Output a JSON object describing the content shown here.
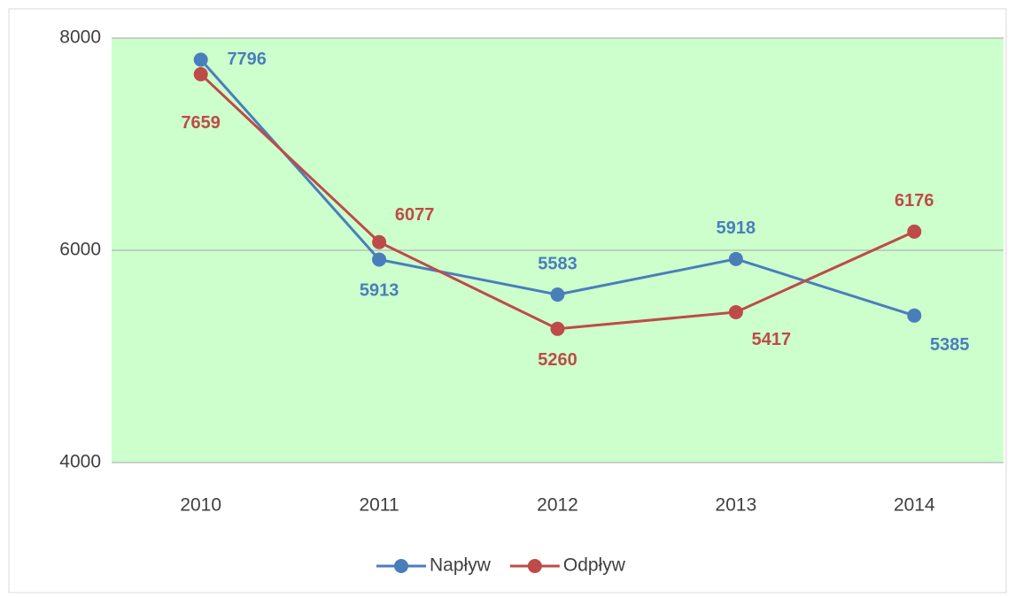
{
  "chart_data": {
    "type": "line",
    "categories": [
      "2010",
      "2011",
      "2012",
      "2013",
      "2014"
    ],
    "series": [
      {
        "name": "Napływ",
        "color": "#4a7ebb",
        "values": [
          7796,
          5913,
          5583,
          5918,
          5385
        ]
      },
      {
        "name": "Odpływ",
        "color": "#be4b48",
        "values": [
          7659,
          6077,
          5260,
          5417,
          6176
        ]
      }
    ],
    "ylim": [
      4000,
      8000
    ],
    "yticks": [
      4000,
      6000,
      8000
    ],
    "grid": true,
    "plot_background": "#ccffcc",
    "legend": "bottom"
  }
}
